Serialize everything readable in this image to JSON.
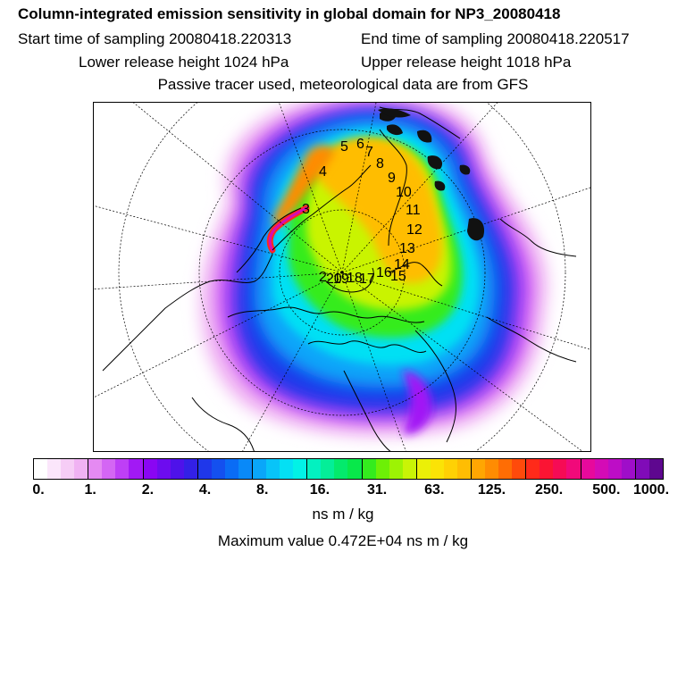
{
  "header": {
    "title": "Column-integrated emission sensitivity in global domain for NP3_20080418",
    "start_time": "Start time of sampling 20080418.220313",
    "end_time": "End time of sampling 20080418.220517",
    "lower_height": "Lower release height 1024 hPa",
    "upper_height": "Upper release height 1018 hPa",
    "tracer_note": "Passive tracer used, meteorological data are from GFS"
  },
  "map": {
    "projection": "north-polar-stereographic",
    "track_labels": [
      "2",
      "3",
      "4",
      "5",
      "6",
      "7",
      "8",
      "9",
      "10",
      "11",
      "12",
      "13",
      "14",
      "15",
      "16",
      "17",
      "18",
      "19",
      "20"
    ]
  },
  "colorbar": {
    "colors": [
      "#ffffff",
      "#fbe6fb",
      "#f6cdf6",
      "#f0b2f3",
      "#e58af2",
      "#d466f4",
      "#be3ff6",
      "#a219f5",
      "#8a06f3",
      "#6d0cef",
      "#4e12ea",
      "#3320e6",
      "#1f37ea",
      "#1450ef",
      "#0a6cf5",
      "#0989f8",
      "#0aa6f9",
      "#08c4f8",
      "#04e0f4",
      "#02f2e6",
      "#03f1c0",
      "#04ee98",
      "#04ea6c",
      "#08e84a",
      "#34ec1e",
      "#6df006",
      "#9df304",
      "#c9f406",
      "#ebf007",
      "#fbe306",
      "#ffd104",
      "#ffbd03",
      "#ffa602",
      "#ff8c02",
      "#ff6d04",
      "#ff4a0b",
      "#ff2a1a",
      "#fb1433",
      "#f60b55",
      "#f1097a",
      "#e7099c",
      "#d40bb6",
      "#bd0dc6",
      "#9f0ec9",
      "#800bb8",
      "#5e078f"
    ],
    "tick_labels": [
      "0.",
      "1.",
      "2.",
      "4.",
      "8.",
      "16.",
      "31.",
      "63.",
      "125.",
      "250.",
      "500.",
      "1000."
    ],
    "unit": "ns m / kg"
  },
  "footer": {
    "maximum": "Maximum value  0.472E+04 ns m / kg"
  }
}
